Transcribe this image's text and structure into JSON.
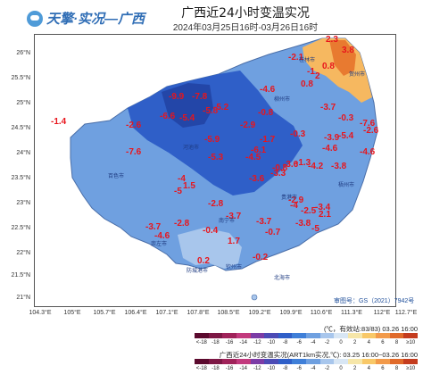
{
  "header": {
    "logo_text": "天擎·实况—广西",
    "title": "广西近24小时变温实况",
    "subtitle": "2024年03月25日16时-03月26日16时"
  },
  "map": {
    "y_labels": [
      "26°N",
      "25.5°N",
      "25°N",
      "24.5°N",
      "24°N",
      "23.5°N",
      "23°N",
      "22.5°N",
      "22°N",
      "21.5°N",
      "21°N"
    ],
    "x_labels": [
      "104.3°E",
      "105°E",
      "105.7°E",
      "106.4°E",
      "107.1°E",
      "107.8°E",
      "108.5°E",
      "109.2°E",
      "109.9°E",
      "110.6°E",
      "111.3°E",
      "112°E",
      "112.7°E"
    ],
    "review_number": "审图号：GS（2021）7942号",
    "values": [
      "2.3",
      "-2.1",
      "3.8",
      "0.8",
      "2",
      "-1",
      "0.8",
      "-9.9",
      "-7.8",
      "-5.8",
      "-4.6",
      "-1.4",
      "-2.6",
      "-6.6",
      "-5.4",
      "-5.2",
      "-0.8",
      "-2.9",
      "-3.7",
      "-0.3",
      "-7.6",
      "-1.7",
      "-0.3",
      "-5.9",
      "-6.1",
      "-0.8",
      "-7.6",
      "-5.4",
      "-2.6",
      "-4.6",
      "-3.9",
      "-1.3",
      "-3.6",
      "-4.5",
      "-4.2",
      "-5.3",
      "-4",
      "-3.3",
      "-3.8",
      "-4.6",
      "-5",
      "1.5",
      "-2.8",
      "-3.6",
      "-4",
      "-3.7",
      "-3.7",
      "-2.9",
      "-2.5",
      "2.1",
      "-3.4",
      "-3.7",
      "-2.8",
      "-4.6",
      "-0.4",
      "-0.7",
      "-3.8",
      "-5",
      "1.7",
      "0.2",
      "-0.2"
    ],
    "town_names": [
      "桂林市",
      "柳州市",
      "河池市",
      "百色市",
      "南宁市",
      "崇左市",
      "钦州市",
      "北海市",
      "防城港市",
      "贵港市",
      "梧州市",
      "贺州市"
    ]
  },
  "legend": {
    "note1": "(℃，有效站:83/83) 03.26 16:00",
    "note2": "广西近24小时变温实况(ART1km实况,℃): 03.25 16:00~03.26 16:00",
    "ticks": [
      "<-18",
      "-18",
      "-16",
      "-14",
      "-12",
      "-10",
      "-8",
      "-6",
      "-4",
      "-2",
      "0",
      "2",
      "4",
      "6",
      "8",
      "≥10"
    ],
    "colors": [
      "#5b0a2e",
      "#7d1845",
      "#a0235a",
      "#c23a7d",
      "#7c3ca6",
      "#4c4bb5",
      "#2f5fc8",
      "#3f7fd8",
      "#6fa0e0",
      "#a8c6ec",
      "#d8e6f4",
      "#f6e6a8",
      "#f8c868",
      "#f29a4a",
      "#e06a2a",
      "#c43c1e"
    ]
  }
}
